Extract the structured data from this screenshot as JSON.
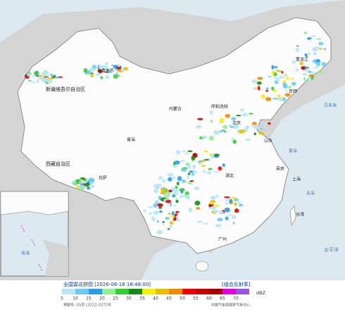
{
  "title": "全国雷达拼图 [2026-08-18 18:48:00]",
  "product": "[组合反射率]",
  "legend": {
    "unit": "dBZ",
    "levels": [
      {
        "value": 5,
        "color": "#b8e6f5"
      },
      {
        "value": 10,
        "color": "#6ccbf2"
      },
      {
        "value": 15,
        "color": "#2a9de8"
      },
      {
        "value": 20,
        "color": "#8ef08e"
      },
      {
        "value": 25,
        "color": "#2ed12e"
      },
      {
        "value": 30,
        "color": "#138a13"
      },
      {
        "value": 35,
        "color": "#f4f000"
      },
      {
        "value": 40,
        "color": "#e8c000"
      },
      {
        "value": 45,
        "color": "#f28a00"
      },
      {
        "value": 50,
        "color": "#f00000"
      },
      {
        "value": 55,
        "color": "#c80000"
      },
      {
        "value": 60,
        "color": "#a80000"
      },
      {
        "value": 65,
        "color": "#e000e0"
      },
      {
        "value": 70,
        "color": "#9a50e0"
      }
    ]
  },
  "footer": {
    "approval": "审图号: GS京 (2022) 0372号",
    "source": "中国气象局国家气象中心"
  },
  "places": [
    "新疆维吾尔自治区",
    "乌鲁木齐",
    "西藏自治区",
    "拉萨",
    "青海",
    "内蒙古",
    "黑龙江",
    "吉林",
    "呼和浩特",
    "北京",
    "山东",
    "湖北",
    "南京",
    "上海",
    "台湾",
    "广州",
    "日本海",
    "黄海",
    "东海",
    "太平洋",
    "南海"
  ]
}
